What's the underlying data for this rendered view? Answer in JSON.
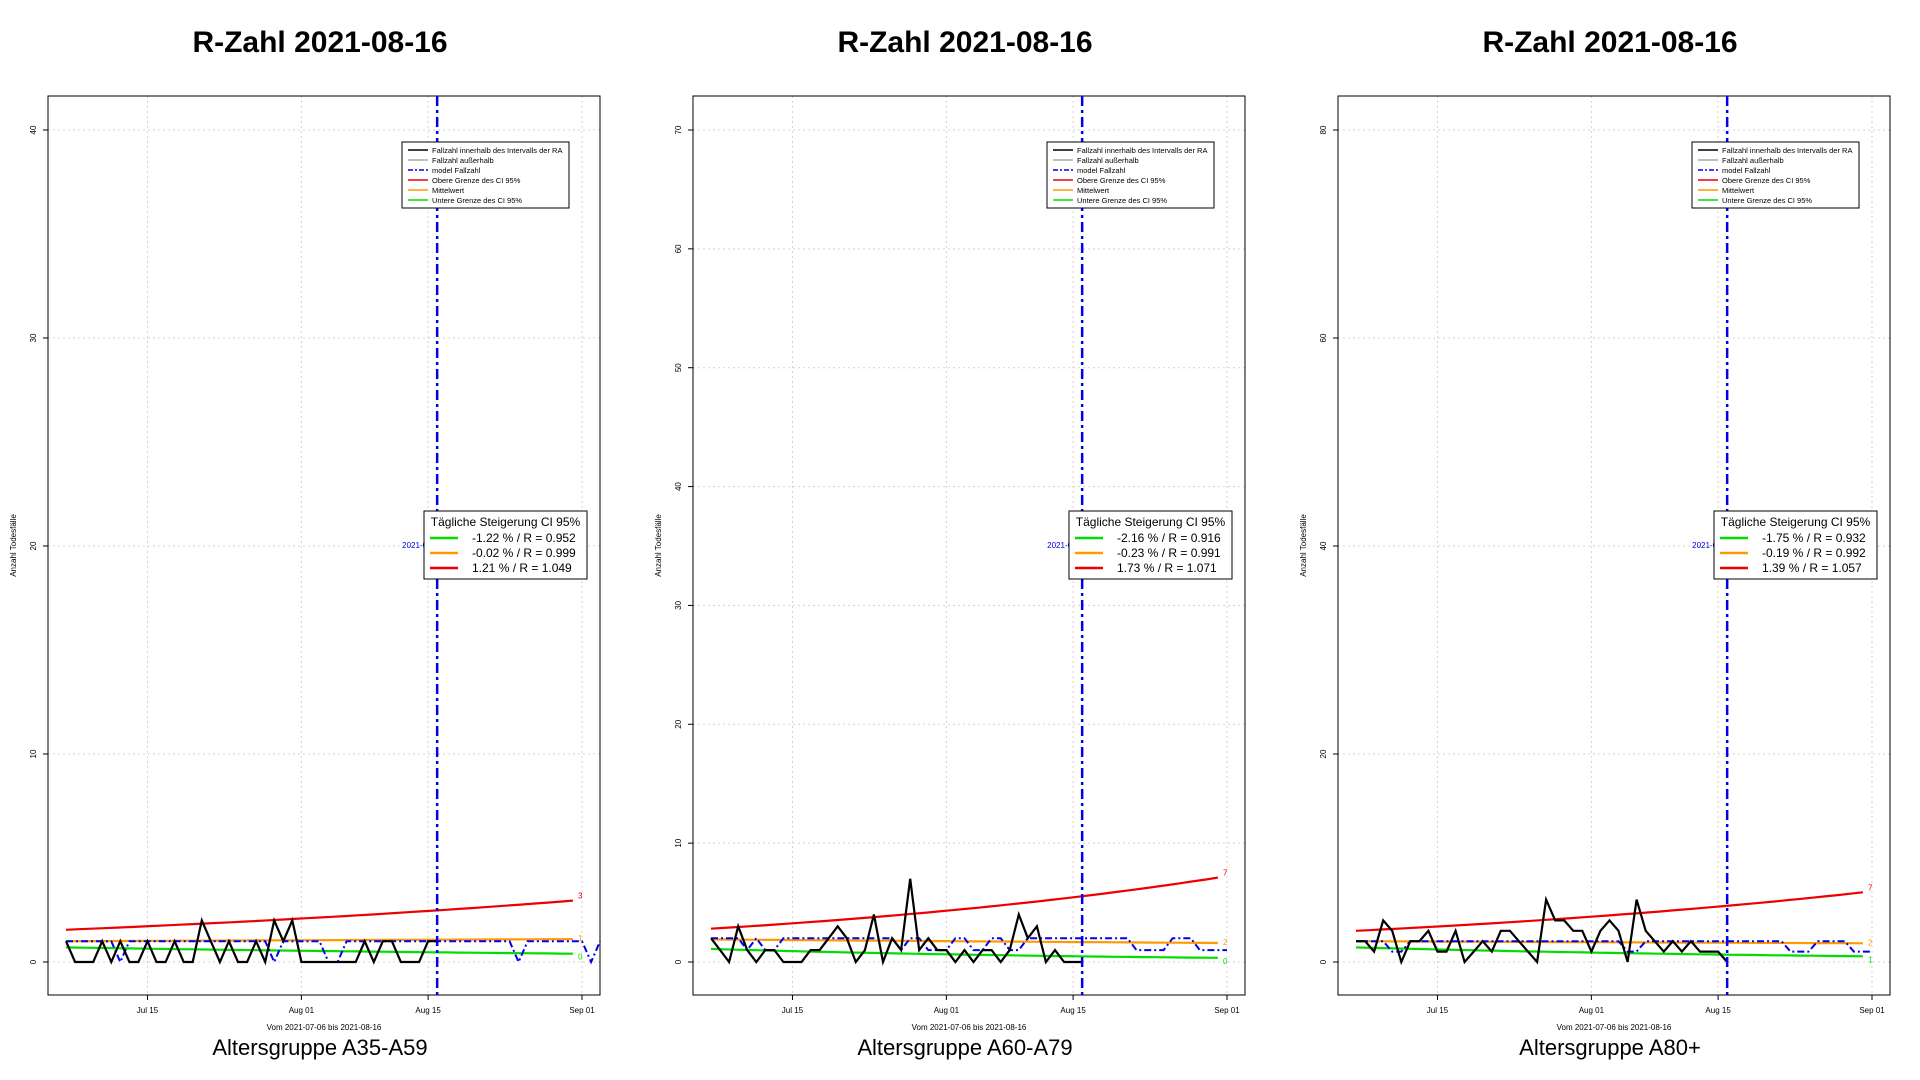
{
  "colors": {
    "inside": "#000000",
    "outside": "#aaaaaa",
    "model": "#0000ee",
    "upper": "#ee0000",
    "mean": "#ff9900",
    "lower": "#00dd00",
    "grid": "#d3d3d3"
  },
  "legend_labels": [
    "Fallzahl innerhalb des Intervalls der RA",
    "Fallzahl außerhalb",
    "model Fallzahl",
    "Obere Grenze des CI 95%",
    "Mittelwert",
    "Untere Grenze des CI 95%"
  ],
  "chart_data": [
    {
      "type": "line",
      "title": "R-Zahl 2021-08-16",
      "subtitle": "Altersgruppe A35-A59",
      "xlabel": "Vom 2021-07-06 bis 2021-08-16",
      "ylabel": "Anzahl Todesfälle",
      "x_range": [
        "2021-07-06",
        "2021-09-01"
      ],
      "ylim": [
        0,
        40
      ],
      "y_ticks": [
        0,
        10,
        20,
        30,
        40
      ],
      "x_ticks": [
        "Jul 15",
        "Aug 01",
        "Aug 15",
        "Sep 01"
      ],
      "vline": {
        "date": "2021-08-16",
        "label": "2021-08-"
      },
      "grid": true,
      "legend_position": "top-right",
      "ci_box": {
        "title": "Tägliche Steigerung CI  95%",
        "rows": [
          "-1.22 % / R = 0.952",
          "-0.02 % / R = 0.999",
          "1.21 % / R = 1.049"
        ]
      },
      "end_labels": [
        "3",
        "1",
        "0"
      ],
      "series": [
        {
          "name": "Fallzahl innerhalb des Intervalls der RA",
          "role": "inside",
          "start": "2021-07-06",
          "values": [
            1,
            0,
            0,
            0,
            1,
            0,
            1,
            0,
            0,
            1,
            0,
            0,
            1,
            0,
            0,
            2,
            1,
            0,
            1,
            0,
            0,
            1,
            0,
            2,
            1,
            2,
            0,
            0,
            0,
            0,
            0,
            0,
            0,
            1,
            0,
            1,
            1,
            0,
            0,
            0,
            1,
            1
          ]
        },
        {
          "name": "model Fallzahl",
          "role": "model",
          "start": "2021-07-06",
          "values": [
            1,
            1,
            1,
            1,
            1,
            1,
            0,
            1,
            1,
            1,
            1,
            1,
            1,
            1,
            1,
            1,
            1,
            1,
            1,
            1,
            1,
            1,
            1,
            0,
            1,
            1,
            1,
            1,
            1,
            0,
            0,
            1,
            1,
            1,
            1,
            1,
            1,
            1,
            1,
            1,
            1,
            1,
            1,
            1,
            1,
            1,
            1,
            1,
            1,
            1,
            0,
            1,
            1,
            1,
            1,
            1,
            1,
            1,
            0,
            1
          ]
        },
        {
          "name": "Obere Grenze des CI 95%",
          "role": "upper",
          "start": "2021-07-06",
          "end": "2021-08-31",
          "from": 1.55,
          "to": 2.95
        },
        {
          "name": "Mittelwert",
          "role": "mean",
          "start": "2021-07-06",
          "end": "2021-08-31",
          "from": 1.0,
          "to": 1.1
        },
        {
          "name": "Untere Grenze des CI 95%",
          "role": "lower",
          "start": "2021-07-06",
          "end": "2021-08-31",
          "from": 0.7,
          "to": 0.4
        }
      ]
    },
    {
      "type": "line",
      "title": "R-Zahl 2021-08-16",
      "subtitle": "Altersgruppe A60-A79",
      "xlabel": "Vom 2021-07-06 bis 2021-08-16",
      "ylabel": "Anzahl Todesfälle",
      "x_range": [
        "2021-07-06",
        "2021-09-01"
      ],
      "ylim": [
        0,
        73
      ],
      "y_ticks": [
        0,
        10,
        20,
        30,
        40,
        50,
        60,
        70
      ],
      "x_ticks": [
        "Jul 15",
        "Aug 01",
        "Aug 15",
        "Sep 01"
      ],
      "vline": {
        "date": "2021-08-16",
        "label": "2021-08-"
      },
      "grid": true,
      "legend_position": "top-right",
      "ci_box": {
        "title": "Tägliche Steigerung CI  95%",
        "rows": [
          "-2.16 % / R = 0.916",
          "-0.23 % / R = 0.991",
          "1.73 % / R = 1.071"
        ]
      },
      "end_labels": [
        "7",
        "2",
        "0"
      ],
      "series": [
        {
          "name": "Fallzahl innerhalb des Intervalls der RA",
          "role": "inside",
          "start": "2021-07-06",
          "values": [
            2,
            1,
            0,
            3,
            1,
            0,
            1,
            1,
            0,
            0,
            0,
            1,
            1,
            2,
            3,
            2,
            0,
            1,
            4,
            0,
            2,
            1,
            7,
            1,
            2,
            1,
            1,
            0,
            1,
            0,
            1,
            1,
            0,
            1,
            4,
            2,
            3,
            0,
            1,
            0,
            0,
            0
          ]
        },
        {
          "name": "model Fallzahl",
          "role": "model",
          "start": "2021-07-06",
          "values": [
            2,
            2,
            2,
            2,
            1,
            2,
            1,
            1,
            2,
            2,
            2,
            2,
            2,
            2,
            2,
            2,
            2,
            2,
            2,
            2,
            2,
            1,
            2,
            2,
            1,
            1,
            1,
            2,
            2,
            1,
            1,
            2,
            2,
            1,
            1,
            2,
            2,
            2,
            2,
            2,
            2,
            2,
            2,
            2,
            2,
            2,
            2,
            1,
            1,
            1,
            1,
            2,
            2,
            2,
            1,
            1,
            1,
            1
          ]
        },
        {
          "name": "Obere Grenze des CI 95%",
          "role": "upper",
          "start": "2021-07-06",
          "end": "2021-08-31",
          "from": 2.8,
          "to": 7.1
        },
        {
          "name": "Mittelwert",
          "role": "mean",
          "start": "2021-07-06",
          "end": "2021-08-31",
          "from": 1.9,
          "to": 1.6
        },
        {
          "name": "Untere Grenze des CI 95%",
          "role": "lower",
          "start": "2021-07-06",
          "end": "2021-08-31",
          "from": 1.1,
          "to": 0.35
        }
      ]
    },
    {
      "type": "line",
      "title": "R-Zahl 2021-08-16",
      "subtitle": "Altersgruppe A80+",
      "xlabel": "Vom 2021-07-06 bis 2021-08-16",
      "ylabel": "Anzahl Todesfälle",
      "x_range": [
        "2021-07-06",
        "2021-09-01"
      ],
      "ylim": [
        0,
        85
      ],
      "y_ticks": [
        0,
        20,
        40,
        60,
        80
      ],
      "x_ticks": [
        "Jul 15",
        "Aug 01",
        "Aug 15",
        "Sep 01"
      ],
      "vline": {
        "date": "2021-08-16",
        "label": "2021-08-"
      },
      "grid": true,
      "legend_position": "top-right",
      "ci_box": {
        "title": "Tägliche Steigerung CI  95%",
        "rows": [
          "-1.75 % / R = 0.932",
          "-0.19 % / R = 0.992",
          "1.39 % / R = 1.057"
        ]
      },
      "end_labels": [
        "7",
        "2",
        "1"
      ],
      "series": [
        {
          "name": "Fallzahl innerhalb des Intervalls der RA",
          "role": "inside",
          "start": "2021-07-06",
          "values": [
            2,
            2,
            1,
            4,
            3,
            0,
            2,
            2,
            3,
            1,
            1,
            3,
            0,
            1,
            2,
            1,
            3,
            3,
            2,
            1,
            0,
            6,
            4,
            4,
            3,
            3,
            1,
            3,
            4,
            3,
            0,
            6,
            3,
            2,
            1,
            2,
            1,
            2,
            1,
            1,
            1,
            0
          ]
        },
        {
          "name": "model Fallzahl",
          "role": "model",
          "start": "2021-07-06",
          "values": [
            2,
            2,
            2,
            2,
            1,
            1,
            2,
            2,
            2,
            2,
            2,
            2,
            2,
            2,
            2,
            2,
            2,
            2,
            2,
            2,
            2,
            2,
            2,
            2,
            2,
            2,
            2,
            2,
            2,
            2,
            1,
            1,
            2,
            2,
            2,
            2,
            2,
            2,
            2,
            2,
            2,
            2,
            2,
            2,
            2,
            2,
            2,
            2,
            1,
            1,
            1,
            2,
            2,
            2,
            2,
            1,
            1,
            1
          ]
        },
        {
          "name": "Obere Grenze des CI 95%",
          "role": "upper",
          "start": "2021-07-06",
          "end": "2021-08-31",
          "from": 3.0,
          "to": 6.7
        },
        {
          "name": "Mittelwert",
          "role": "mean",
          "start": "2021-07-06",
          "end": "2021-08-31",
          "from": 2.0,
          "to": 1.8
        },
        {
          "name": "Untere Grenze des CI 95%",
          "role": "lower",
          "start": "2021-07-06",
          "end": "2021-08-31",
          "from": 1.4,
          "to": 0.55
        }
      ]
    }
  ]
}
